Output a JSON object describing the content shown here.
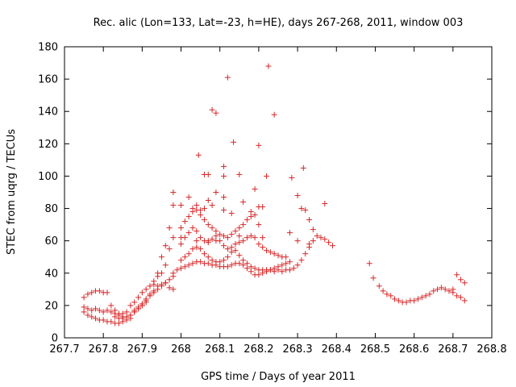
{
  "chart_data": {
    "type": "scatter",
    "title": "Rec. alic (Lon=133, Lat=-23, h=HE), days 267-268, 2011, window 003",
    "xlabel": "GPS time / Days of year 2011",
    "ylabel": "STEC from uqrg / TECUs",
    "xlim": [
      267.7,
      268.8
    ],
    "ylim": [
      0,
      180
    ],
    "xticks": [
      "267.7",
      "267.8",
      "267.9",
      "268",
      "268.1",
      "268.2",
      "268.3",
      "268.4",
      "268.5",
      "268.6",
      "268.7",
      "268.8"
    ],
    "yticks": [
      "0",
      "20",
      "40",
      "60",
      "80",
      "100",
      "120",
      "140",
      "160",
      "180"
    ],
    "grid": false,
    "legend": "none",
    "marker": "+",
    "color": "#d62728",
    "series": [
      {
        "x": [
          267.75,
          267.76,
          267.77,
          267.78,
          267.79,
          267.8,
          267.81,
          267.82,
          267.83,
          267.84,
          267.85,
          267.86,
          267.87,
          267.88,
          267.89,
          267.9,
          267.91,
          267.92,
          267.93,
          267.94,
          267.95,
          267.96,
          267.97,
          267.98
        ],
        "y": [
          25,
          27,
          28,
          29,
          29,
          28,
          28,
          20,
          17,
          15,
          15,
          16,
          20,
          22,
          25,
          28,
          30,
          32,
          35,
          38,
          40,
          45,
          55,
          62
        ]
      },
      {
        "x": [
          267.75,
          267.76,
          267.77,
          267.78,
          267.79,
          267.8,
          267.81,
          267.82,
          267.83,
          267.84,
          267.85,
          267.86,
          267.87,
          267.88,
          267.89,
          267.9,
          267.91,
          267.92,
          267.93,
          267.94,
          267.95,
          267.96,
          267.97,
          267.98
        ],
        "y": [
          19,
          18,
          17,
          18,
          17,
          16,
          17,
          16,
          15,
          14,
          13,
          13,
          14,
          17,
          19,
          21,
          24,
          26,
          28,
          30,
          32,
          34,
          36,
          38
        ]
      },
      {
        "x": [
          267.75,
          267.76,
          267.77,
          267.78,
          267.79,
          267.8,
          267.81,
          267.82,
          267.83,
          267.84,
          267.85,
          267.86,
          267.87,
          267.88,
          267.89,
          267.9,
          267.91,
          267.92,
          267.93,
          267.94,
          267.95,
          267.96,
          267.97,
          267.98
        ],
        "y": [
          16,
          14,
          13,
          12,
          11,
          11,
          10,
          10,
          9,
          9,
          10,
          11,
          12,
          16,
          18,
          20,
          22,
          26,
          29,
          32,
          33,
          34,
          31,
          30
        ]
      },
      {
        "x": [
          267.83,
          267.84,
          267.85,
          267.86,
          267.87,
          267.88,
          267.89,
          267.9,
          267.91,
          267.92,
          267.93,
          267.94,
          267.95,
          267.96,
          267.97,
          267.98
        ],
        "y": [
          13,
          12,
          12,
          13,
          14,
          16,
          18,
          20,
          23,
          27,
          33,
          40,
          50,
          57,
          68,
          82
        ]
      },
      {
        "x": [
          267.98,
          267.99,
          268.0,
          268.01,
          268.02,
          268.03,
          268.04,
          268.05,
          268.06,
          268.07,
          268.08,
          268.09,
          268.1,
          268.11,
          268.12,
          268.13,
          268.14,
          268.15,
          268.16,
          268.17,
          268.18,
          268.19,
          268.2,
          268.21,
          268.22,
          268.23,
          268.24,
          268.25,
          268.26,
          268.27,
          268.28,
          268.29,
          268.3,
          268.31,
          268.32,
          268.33,
          268.34
        ],
        "y": [
          40,
          42,
          43,
          44,
          45,
          46,
          47,
          47,
          46,
          46,
          45,
          45,
          44,
          44,
          44,
          45,
          46,
          46,
          45,
          43,
          41,
          39,
          39,
          40,
          41,
          42,
          41,
          42,
          41,
          42,
          42,
          43,
          45,
          48,
          52,
          56,
          60
        ]
      },
      {
        "x": [
          268.0,
          268.01,
          268.02,
          268.03,
          268.04,
          268.05,
          268.06,
          268.07,
          268.08,
          268.09,
          268.1,
          268.11,
          268.12,
          268.13,
          268.14,
          268.15,
          268.16,
          268.17,
          268.18,
          268.19,
          268.2,
          268.21,
          268.22,
          268.23,
          268.24,
          268.25,
          268.26,
          268.27,
          268.28
        ],
        "y": [
          48,
          50,
          52,
          55,
          56,
          55,
          52,
          50,
          48,
          47,
          47,
          48,
          50,
          53,
          54,
          51,
          48,
          46,
          44,
          43,
          42,
          42,
          42,
          42,
          43,
          44,
          45,
          46,
          47
        ]
      },
      {
        "x": [
          268.0,
          268.01,
          268.02,
          268.03,
          268.04,
          268.05,
          268.06,
          268.07,
          268.08,
          268.09,
          268.1,
          268.11,
          268.12,
          268.13,
          268.14,
          268.15,
          268.16,
          268.17,
          268.18,
          268.19,
          268.2,
          268.21,
          268.22,
          268.23,
          268.24,
          268.25,
          268.26,
          268.27
        ],
        "y": [
          58,
          62,
          65,
          68,
          66,
          62,
          60,
          59,
          61,
          63,
          60,
          57,
          55,
          56,
          58,
          59,
          60,
          62,
          63,
          62,
          58,
          56,
          54,
          53,
          52,
          51,
          50,
          50
        ]
      },
      {
        "x": [
          268.0,
          268.01,
          268.02,
          268.03,
          268.04,
          268.05,
          268.06,
          268.07,
          268.08,
          268.09,
          268.1,
          268.11,
          268.12,
          268.13,
          268.14,
          268.15,
          268.16,
          268.17,
          268.18,
          268.19,
          268.2
        ],
        "y": [
          68,
          72,
          75,
          78,
          79,
          76,
          73,
          70,
          68,
          66,
          64,
          63,
          62,
          64,
          66,
          68,
          70,
          73,
          75,
          76,
          70
        ]
      },
      {
        "x": [
          268.33,
          268.34,
          268.35,
          268.36,
          268.37,
          268.38,
          268.39
        ],
        "y": [
          73,
          67,
          63,
          62,
          61,
          59,
          57
        ]
      },
      {
        "x": [
          268.0,
          268.02,
          268.04,
          268.05,
          268.07,
          268.09,
          268.11,
          268.13,
          268.16,
          268.18,
          268.2,
          268.28,
          268.3,
          268.31,
          268.33,
          268.37
        ],
        "y": [
          82,
          87,
          82,
          79,
          85,
          90,
          79,
          77,
          84,
          78,
          81,
          65,
          88,
          80,
          58,
          83
        ]
      },
      {
        "x": [
          267.98,
          268.0,
          268.03,
          268.04,
          268.06,
          268.07,
          268.08,
          268.09,
          268.11,
          268.15,
          268.19,
          268.21,
          268.3,
          268.32
        ],
        "y": [
          90,
          62,
          80,
          60,
          80,
          60,
          82,
          60,
          87,
          63,
          92,
          62,
          60,
          79
        ]
      },
      {
        "x": [
          268.045,
          268.06,
          268.07,
          268.08,
          268.09,
          268.11,
          268.11,
          268.12,
          268.135,
          268.15,
          268.2,
          268.21,
          268.22,
          268.225,
          268.24,
          268.285,
          268.315
        ],
        "y": [
          113,
          101,
          101,
          141,
          139,
          106,
          100,
          161,
          121,
          101,
          119,
          81,
          100,
          168,
          138,
          99,
          105
        ]
      },
      {
        "x": [
          268.485,
          268.495,
          268.51,
          268.52,
          268.53,
          268.54,
          268.55,
          268.56,
          268.57,
          268.58,
          268.59,
          268.6,
          268.61,
          268.62,
          268.63,
          268.64,
          268.65,
          268.66,
          268.67,
          268.68,
          268.69,
          268.7,
          268.71,
          268.72,
          268.73
        ],
        "y": [
          46,
          37,
          32,
          29,
          27,
          26,
          24,
          23,
          22,
          22,
          23,
          23,
          24,
          25,
          26,
          27,
          29,
          30,
          31,
          30,
          29,
          28,
          26,
          25,
          23
        ]
      },
      {
        "x": [
          268.7,
          268.71,
          268.72,
          268.73
        ],
        "y": [
          30,
          39,
          36,
          34
        ]
      }
    ]
  }
}
